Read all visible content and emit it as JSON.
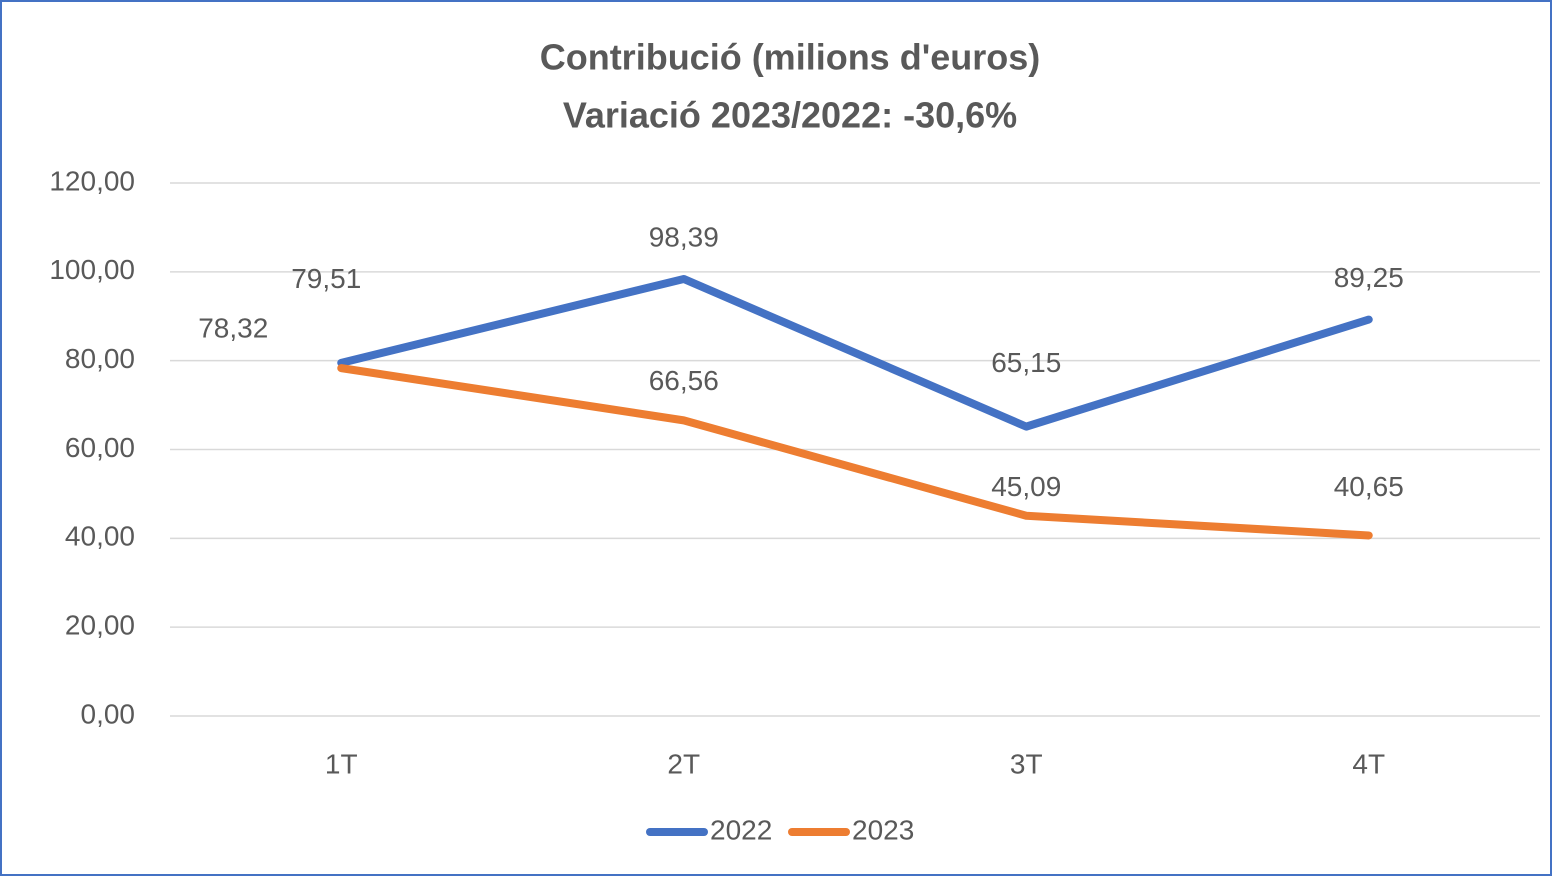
{
  "chart_data": {
    "type": "line",
    "title": "Contribució (milions d'euros)",
    "subtitle": "Variació 2023/2022: -30,6%",
    "categories": [
      "1T",
      "2T",
      "3T",
      "4T"
    ],
    "series": [
      {
        "name": "2022",
        "color": "#4472c4",
        "values": [
          79.51,
          98.39,
          65.15,
          89.25
        ],
        "value_labels": [
          "79,51",
          "98,39",
          "65,15",
          "89,25"
        ]
      },
      {
        "name": "2023",
        "color": "#ed7d31",
        "values": [
          78.32,
          66.56,
          45.09,
          40.65
        ],
        "value_labels": [
          "78,32",
          "66,56",
          "45,09",
          "40,65"
        ]
      }
    ],
    "ylim": [
      0,
      120
    ],
    "yticks": [
      {
        "value": 0,
        "label": "0,00"
      },
      {
        "value": 20,
        "label": "20,00"
      },
      {
        "value": 40,
        "label": "40,00"
      },
      {
        "value": 60,
        "label": "60,00"
      },
      {
        "value": 80,
        "label": "80,00"
      },
      {
        "value": 100,
        "label": "100,00"
      },
      {
        "value": 120,
        "label": "120,00"
      }
    ],
    "grid": true,
    "legend": "bottom"
  }
}
